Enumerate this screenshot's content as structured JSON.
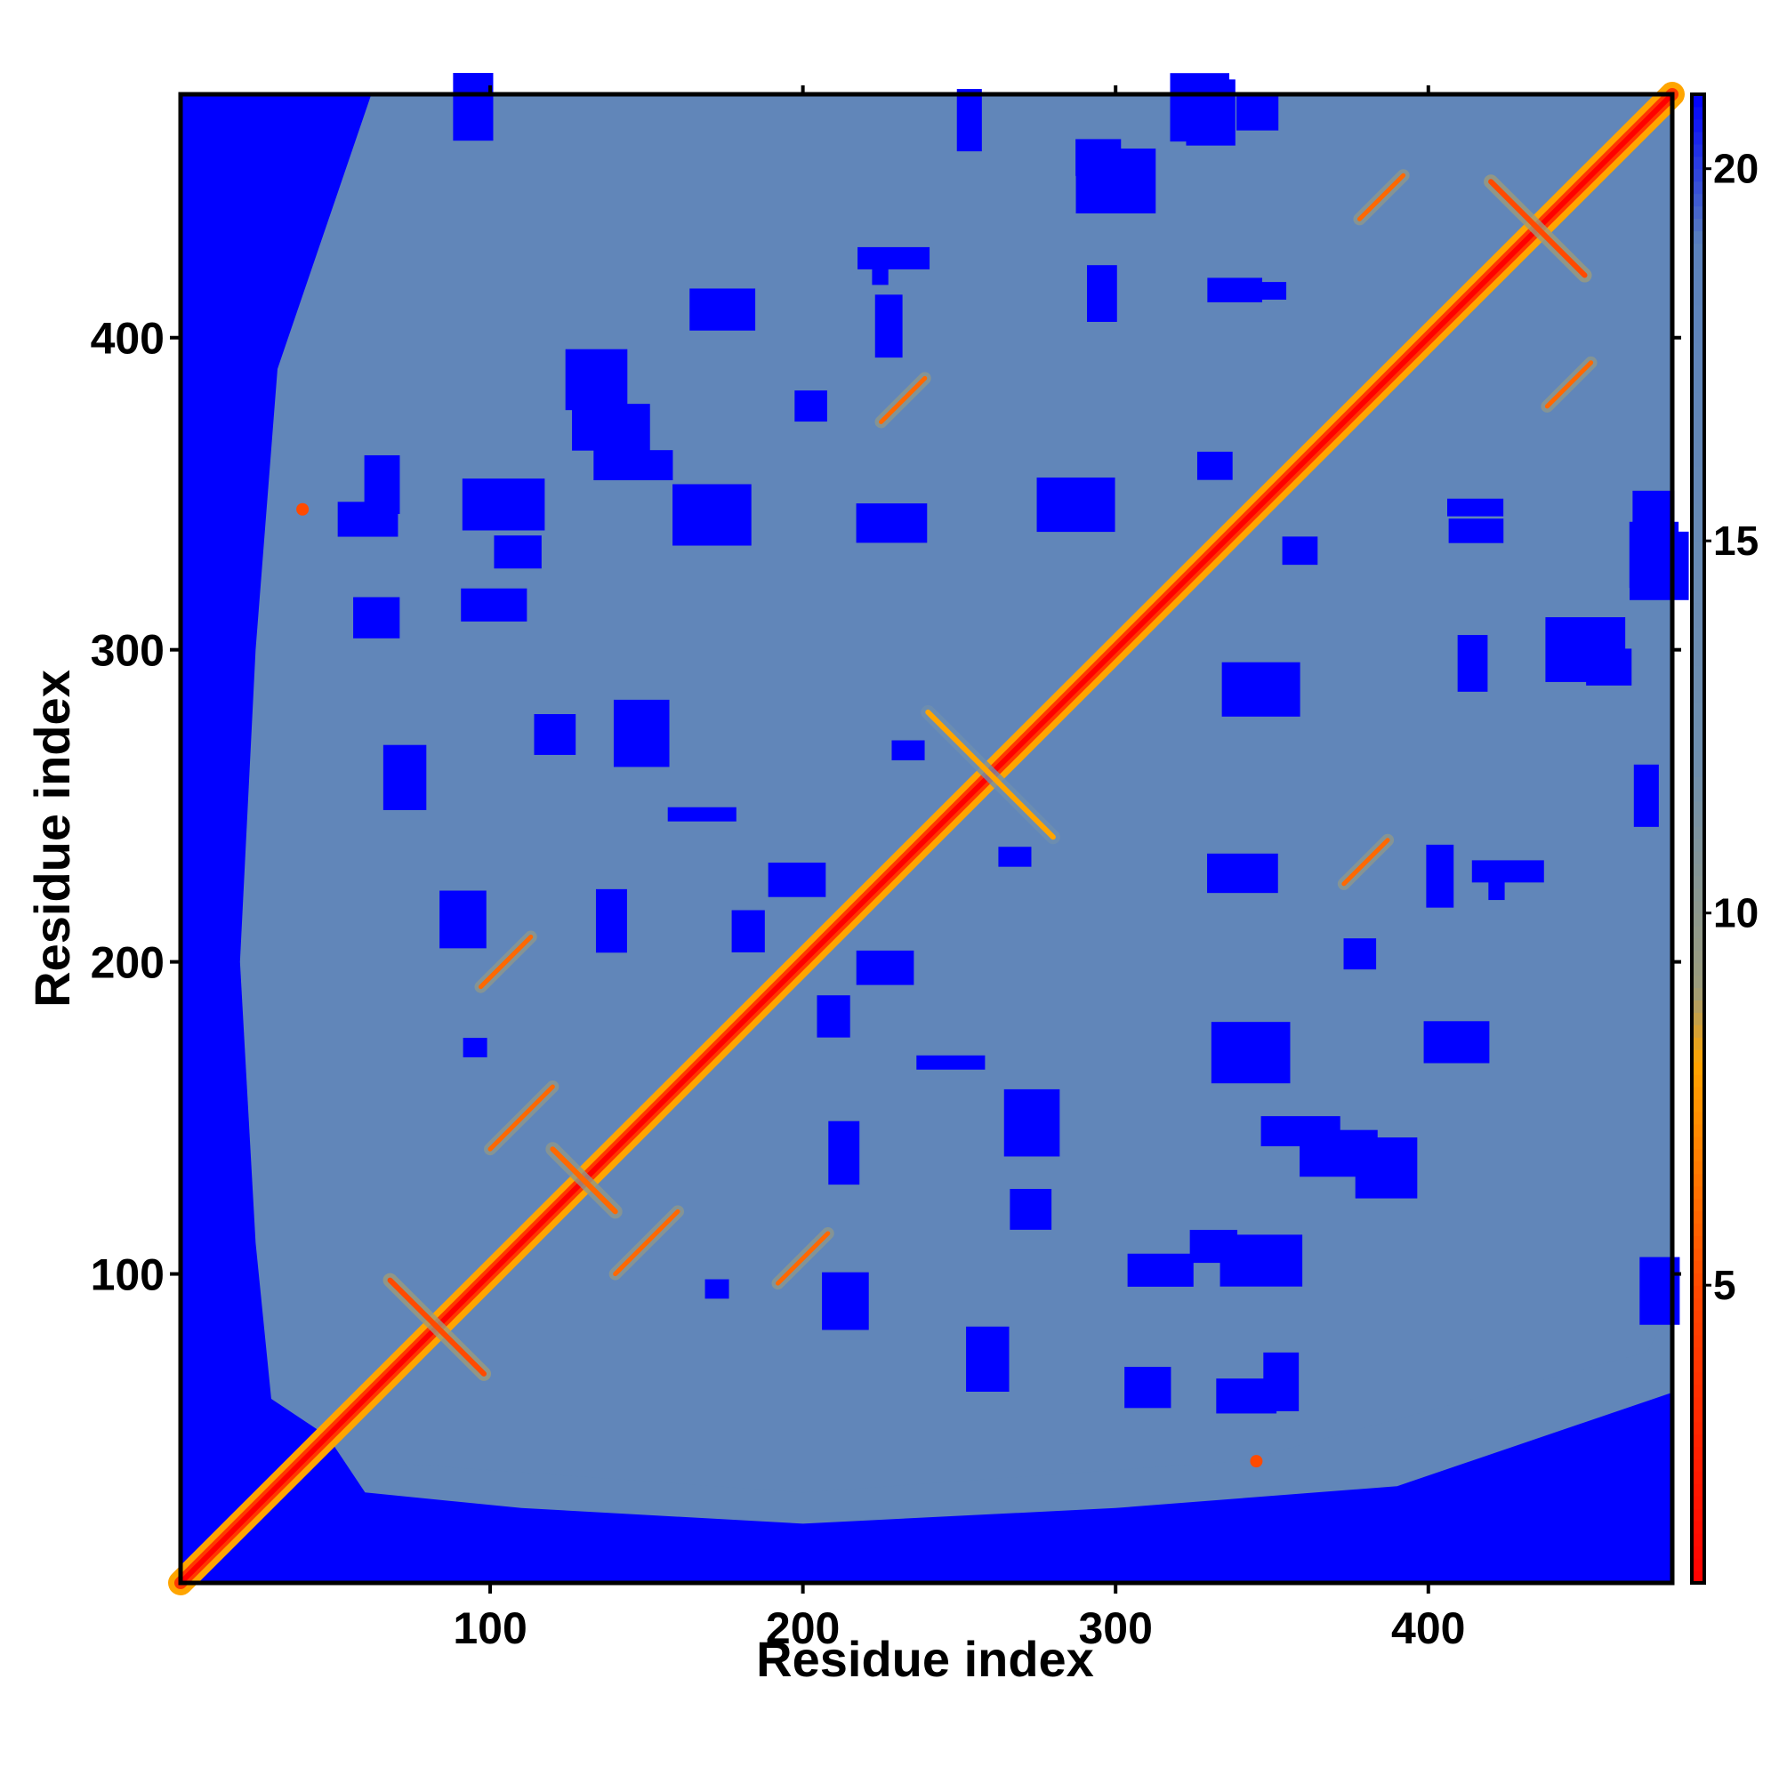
{
  "chart_data": {
    "type": "heatmap",
    "title": "",
    "xlabel": "Residue index",
    "ylabel": "Residue index",
    "xlim": [
      1,
      478
    ],
    "ylim": [
      1,
      478
    ],
    "x_ticks": [
      100,
      200,
      300,
      400
    ],
    "y_ticks": [
      100,
      200,
      300,
      400
    ],
    "colorbar": {
      "range": [
        1,
        21
      ],
      "ticks": [
        5,
        10,
        15,
        20
      ],
      "colors": [
        {
          "value": 1,
          "color": "#ff0000"
        },
        {
          "value": 5,
          "color": "#ff4a00"
        },
        {
          "value": 8,
          "color": "#ffa500"
        },
        {
          "value": 9,
          "color": "#9c9c7c"
        },
        {
          "value": 12,
          "color": "#6f8fae"
        },
        {
          "value": 19,
          "color": "#5b82bd"
        },
        {
          "value": 21,
          "color": "#0000ff"
        }
      ]
    },
    "grid": false,
    "description_of_values": "Pairwise residue-residue distances; diagonal is ~0 (red), background beyond cutoff is blue.",
    "diagonal_value": 1,
    "mid_range_value": 17,
    "far_value": 21,
    "contact_features": [
      {
        "type": "helix_band",
        "from": [
          1,
          1
        ],
        "to": [
          478,
          478
        ],
        "value": 2
      },
      {
        "type": "antidiag",
        "center": [
          83,
          83
        ],
        "length": 30,
        "value": 5
      },
      {
        "type": "antidiag",
        "center": [
          435,
          435
        ],
        "length": 30,
        "value": 5
      },
      {
        "type": "antidiag",
        "center": [
          260,
          260
        ],
        "length": 40,
        "value": 8
      },
      {
        "type": "antidiag",
        "center": [
          130,
          130
        ],
        "length": 20,
        "value": 6
      },
      {
        "type": "parallel",
        "center": [
          150,
          110
        ],
        "length": 20,
        "value": 6
      },
      {
        "type": "parallel",
        "center": [
          110,
          150
        ],
        "length": 20,
        "value": 6
      },
      {
        "type": "parallel",
        "center": [
          105,
          200
        ],
        "length": 16,
        "value": 6
      },
      {
        "type": "parallel",
        "center": [
          200,
          105
        ],
        "length": 16,
        "value": 6
      },
      {
        "type": "parallel",
        "center": [
          232,
          380
        ],
        "length": 14,
        "value": 6
      },
      {
        "type": "parallel",
        "center": [
          380,
          232
        ],
        "length": 14,
        "value": 6
      },
      {
        "type": "parallel",
        "center": [
          385,
          445
        ],
        "length": 14,
        "value": 6
      },
      {
        "type": "parallel",
        "center": [
          445,
          385
        ],
        "length": 14,
        "value": 6
      },
      {
        "type": "point",
        "center": [
          40,
          345
        ],
        "value": 5
      },
      {
        "type": "point",
        "center": [
          345,
          40
        ],
        "value": 5
      }
    ]
  }
}
